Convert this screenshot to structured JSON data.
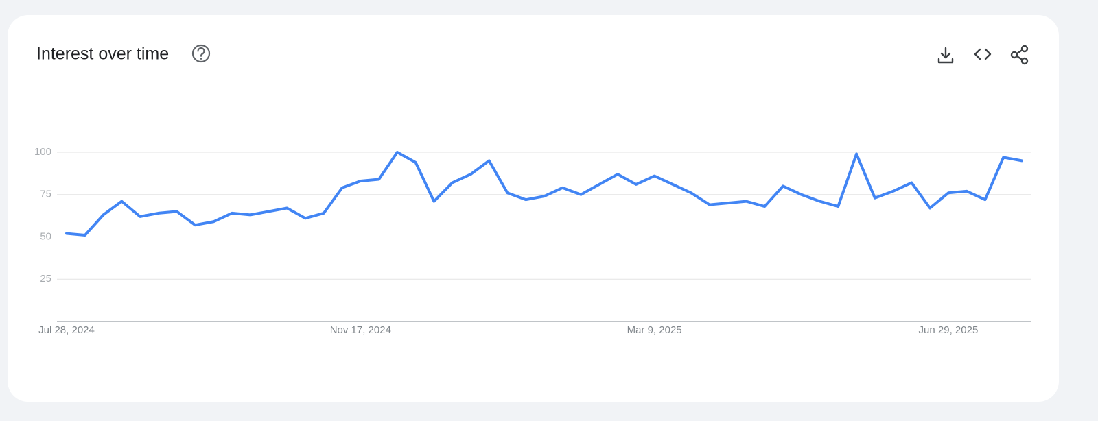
{
  "chart_data": {
    "type": "line",
    "title": "Interest over time",
    "categories": [
      "Jul 28, 2024",
      null,
      null,
      null,
      null,
      null,
      null,
      null,
      null,
      null,
      null,
      null,
      null,
      null,
      null,
      null,
      "Nov 17, 2024",
      null,
      null,
      null,
      null,
      null,
      null,
      null,
      null,
      null,
      null,
      null,
      null,
      null,
      null,
      null,
      "Mar 9, 2025",
      null,
      null,
      null,
      null,
      null,
      null,
      null,
      null,
      null,
      null,
      null,
      null,
      null,
      null,
      null,
      "Jun 29, 2025",
      null,
      null,
      null,
      null
    ],
    "values": [
      52,
      51,
      63,
      71,
      62,
      64,
      65,
      57,
      59,
      64,
      63,
      65,
      67,
      61,
      64,
      79,
      83,
      84,
      100,
      94,
      71,
      82,
      87,
      95,
      76,
      72,
      74,
      79,
      75,
      81,
      87,
      81,
      86,
      81,
      76,
      69,
      70,
      71,
      68,
      80,
      75,
      71,
      68,
      99,
      73,
      77,
      82,
      67,
      76,
      77,
      72,
      97,
      95
    ],
    "color": "#4285f4",
    "ylim": [
      0,
      100
    ],
    "yticks": [
      25,
      50,
      75,
      100
    ],
    "grid": true
  }
}
